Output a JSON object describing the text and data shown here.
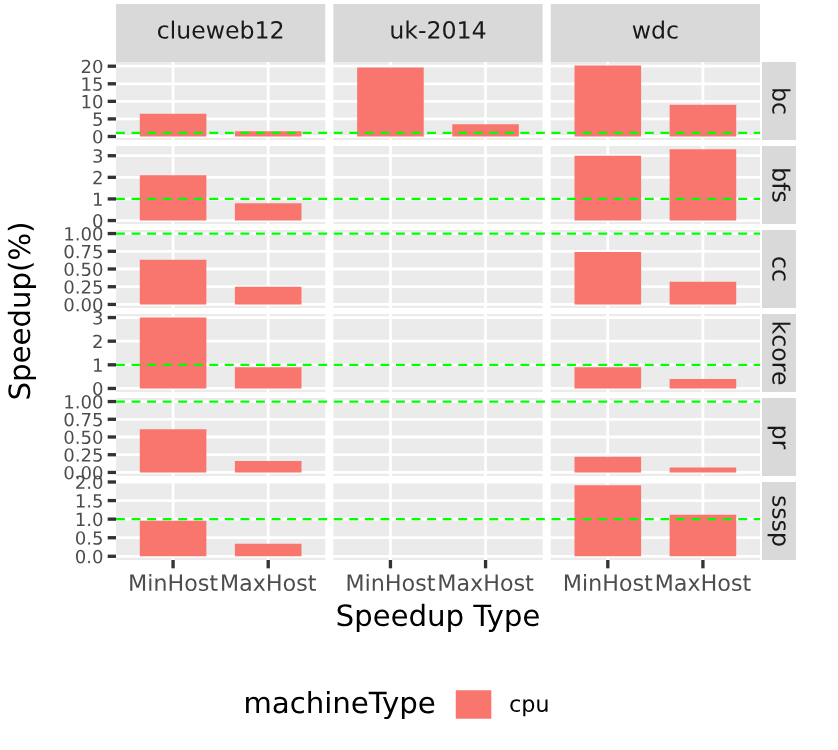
{
  "chart_data": [
    {
      "type": "bar",
      "annotations": [
        "clueweb12",
        "uk-2014",
        "wdc"
      ],
      "y2label": "bc",
      "categories": [
        null,
        null,
        null,
        null,
        null,
        null
      ],
      "series": [
        {
          "color": "#f8766d",
          "values": [
            6.5,
            1.5,
            19.6,
            3.5,
            20.2,
            9
          ]
        }
      ],
      "ylim": [
        -1,
        21.2
      ],
      "yticks": [
        0,
        5,
        10,
        15,
        20
      ],
      "ref_lines": [
        {
          "axis": "y",
          "value": 1,
          "color": "#00ff00",
          "line_style": "dashed"
        }
      ],
      "grid": true,
      "tick_labels": "y"
    },
    {
      "type": "bar",
      "y2label": "bfs",
      "categories": [
        null,
        null,
        null,
        null,
        null,
        null
      ],
      "series": [
        {
          "color": "#f8766d",
          "values": [
            2.1,
            0.8,
            null,
            null,
            3.0,
            3.3
          ]
        }
      ],
      "ylim": [
        -0.16,
        3.45
      ],
      "yticks": [
        0,
        1,
        2,
        3
      ],
      "ref_lines": [
        {
          "axis": "y",
          "value": 1,
          "color": "#00ff00",
          "line_style": "dashed"
        }
      ],
      "grid": true,
      "tick_labels": "y"
    },
    {
      "type": "bar",
      "ylabel": "Speedup(%)",
      "y2label": "cc",
      "categories": [
        null,
        null,
        null,
        null,
        null,
        null
      ],
      "series": [
        {
          "color": "#f8766d",
          "values": [
            0.63,
            0.25,
            null,
            null,
            0.74,
            0.32
          ]
        }
      ],
      "ylim": [
        -0.05,
        1.05
      ],
      "yticks": [
        {
          "value": 0,
          "label": "0.00"
        },
        0.25,
        {
          "value": 0.5,
          "label": "0.50"
        },
        0.75,
        {
          "value": 1,
          "label": "1.00"
        }
      ],
      "ref_lines": [
        {
          "axis": "y",
          "value": 1,
          "color": "#00ff00",
          "line_style": "dashed"
        }
      ],
      "grid": true,
      "tick_labels": "y"
    },
    {
      "type": "bar",
      "y2label": "kcore",
      "categories": [
        null,
        null,
        null,
        null,
        null,
        null
      ],
      "series": [
        {
          "color": "#f8766d",
          "values": [
            3.0,
            0.9,
            null,
            null,
            0.9,
            0.4
          ]
        }
      ],
      "ylim": [
        -0.15,
        3.15
      ],
      "yticks": [
        0,
        1,
        2,
        3
      ],
      "ref_lines": [
        {
          "axis": "y",
          "value": 1,
          "color": "#00ff00",
          "line_style": "dashed"
        }
      ],
      "grid": true,
      "tick_labels": "y"
    },
    {
      "type": "bar",
      "y2label": "pr",
      "categories": [
        null,
        null,
        null,
        null,
        null,
        null
      ],
      "series": [
        {
          "color": "#f8766d",
          "values": [
            0.61,
            0.16,
            null,
            null,
            0.22,
            0.07
          ]
        }
      ],
      "ylim": [
        -0.05,
        1.05
      ],
      "yticks": [
        {
          "value": 0,
          "label": "0.00"
        },
        0.25,
        {
          "value": 0.5,
          "label": "0.50"
        },
        0.75,
        {
          "value": 1,
          "label": "1.00"
        }
      ],
      "ref_lines": [
        {
          "axis": "y",
          "value": 1,
          "color": "#00ff00",
          "line_style": "dashed"
        }
      ],
      "grid": true,
      "tick_labels": "y"
    },
    {
      "type": "bar",
      "xlabel": "Speedup Type",
      "y2label": "sssp",
      "legend_title": "machineType",
      "legend": "bottom",
      "categories": [
        "MinHost",
        "MaxHost",
        "MinHost",
        "MaxHost",
        "MinHost",
        "MaxHost"
      ],
      "series": [
        {
          "name": "cpu",
          "color": "#f8766d",
          "values": [
            0.96,
            0.34,
            null,
            null,
            1.91,
            1.12
          ]
        }
      ],
      "ylim": [
        -0.1,
        2.0
      ],
      "yticks": [
        {
          "value": 0,
          "label": "0.0"
        },
        0.5,
        {
          "value": 1,
          "label": "1.0"
        },
        1.5,
        {
          "value": 2,
          "label": "2.0"
        }
      ],
      "ref_lines": [
        {
          "axis": "y",
          "value": 1,
          "color": "#00ff00",
          "line_style": "dashed"
        }
      ],
      "grid": true
    }
  ]
}
